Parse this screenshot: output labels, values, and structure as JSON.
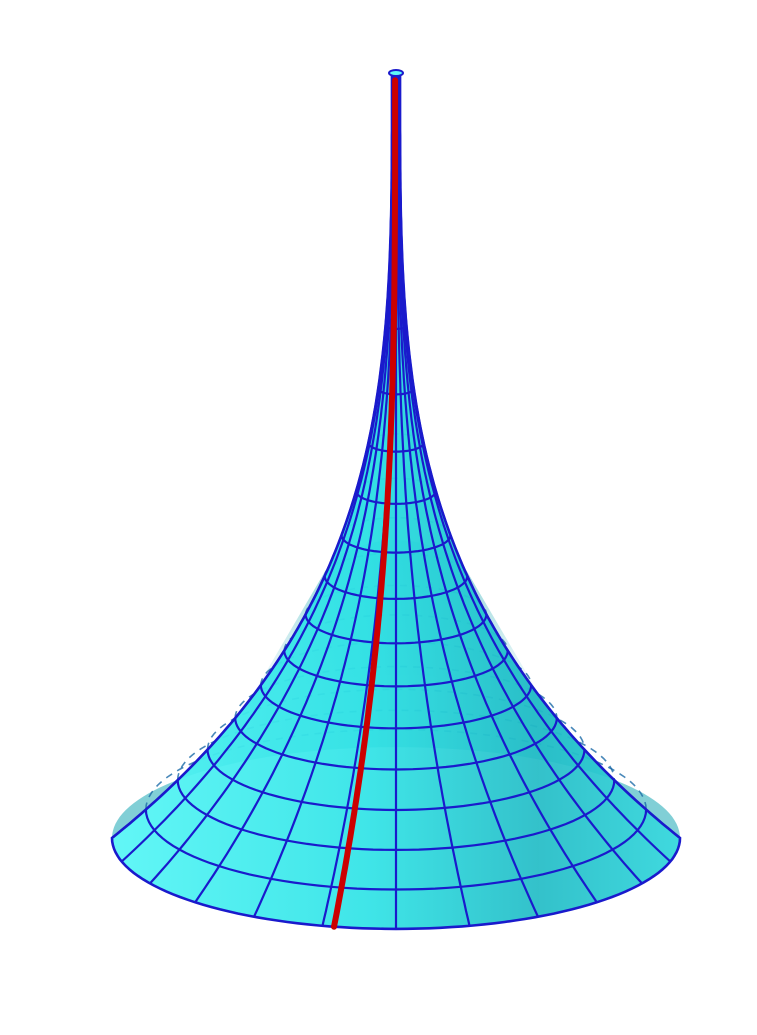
{
  "figure": {
    "subject": "pseudosphere",
    "surface_type": "tractricoid",
    "meridian_count": 24,
    "parallel_count": 14,
    "highlighted_curve": "meridian",
    "colors": {
      "background": "#ffffff",
      "surface_fill": "#2ee6e6",
      "surface_highlight": "#5ff8f8",
      "surface_shadow": "#1aa8b4",
      "mesh_lines": "#1a1acc",
      "highlighted_curve": "#cc0000"
    }
  }
}
